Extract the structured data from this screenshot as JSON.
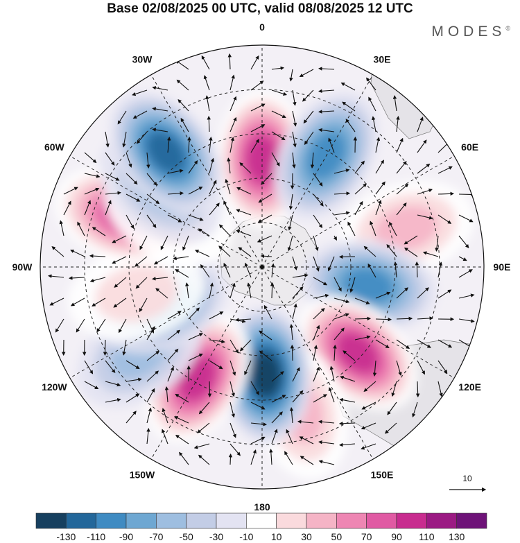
{
  "title": "Base 02/08/2025 00 UTC, valid 08/08/2025 12 UTC",
  "brand": {
    "name": "MODES",
    "mark": "©"
  },
  "longitude_labels": [
    "0",
    "30E",
    "60E",
    "90E",
    "120E",
    "150E",
    "180",
    "150W",
    "120W",
    "90W",
    "60W",
    "30W"
  ],
  "vector_reference": {
    "label": "10"
  },
  "colorbar": {
    "ticks": [
      "-130",
      "-110",
      "-90",
      "-70",
      "-50",
      "-30",
      "-10",
      "10",
      "30",
      "50",
      "70",
      "90",
      "110",
      "130"
    ],
    "colors": [
      "#17405f",
      "#23679a",
      "#3f8bc2",
      "#6ea7d2",
      "#9ebee0",
      "#c3cde6",
      "#e3e3f2",
      "#ffffff",
      "#fadadd",
      "#f5b4c6",
      "#ee86b3",
      "#e05aa3",
      "#c82c8f",
      "#9b1a83",
      "#6e1378"
    ]
  },
  "anomaly_centers": [
    {
      "lon": 0,
      "value": 110
    },
    {
      "lon": 30,
      "value": -90
    },
    {
      "lon": 75,
      "value": 50
    },
    {
      "lon": 100,
      "value": -90
    },
    {
      "lon": 132,
      "value": 115
    },
    {
      "lon": 165,
      "value": 50
    },
    {
      "lon": 178,
      "value": -130
    },
    {
      "lon": 210,
      "value": 120
    },
    {
      "lon": 235,
      "value": -50
    },
    {
      "lon": 250,
      "value": -90
    },
    {
      "lon": 258,
      "value": 30
    },
    {
      "lon": 290,
      "value": 100
    },
    {
      "lon": 300,
      "value": 30
    },
    {
      "lon": 308,
      "value": -50
    },
    {
      "lon": 320,
      "value": -110
    }
  ]
}
